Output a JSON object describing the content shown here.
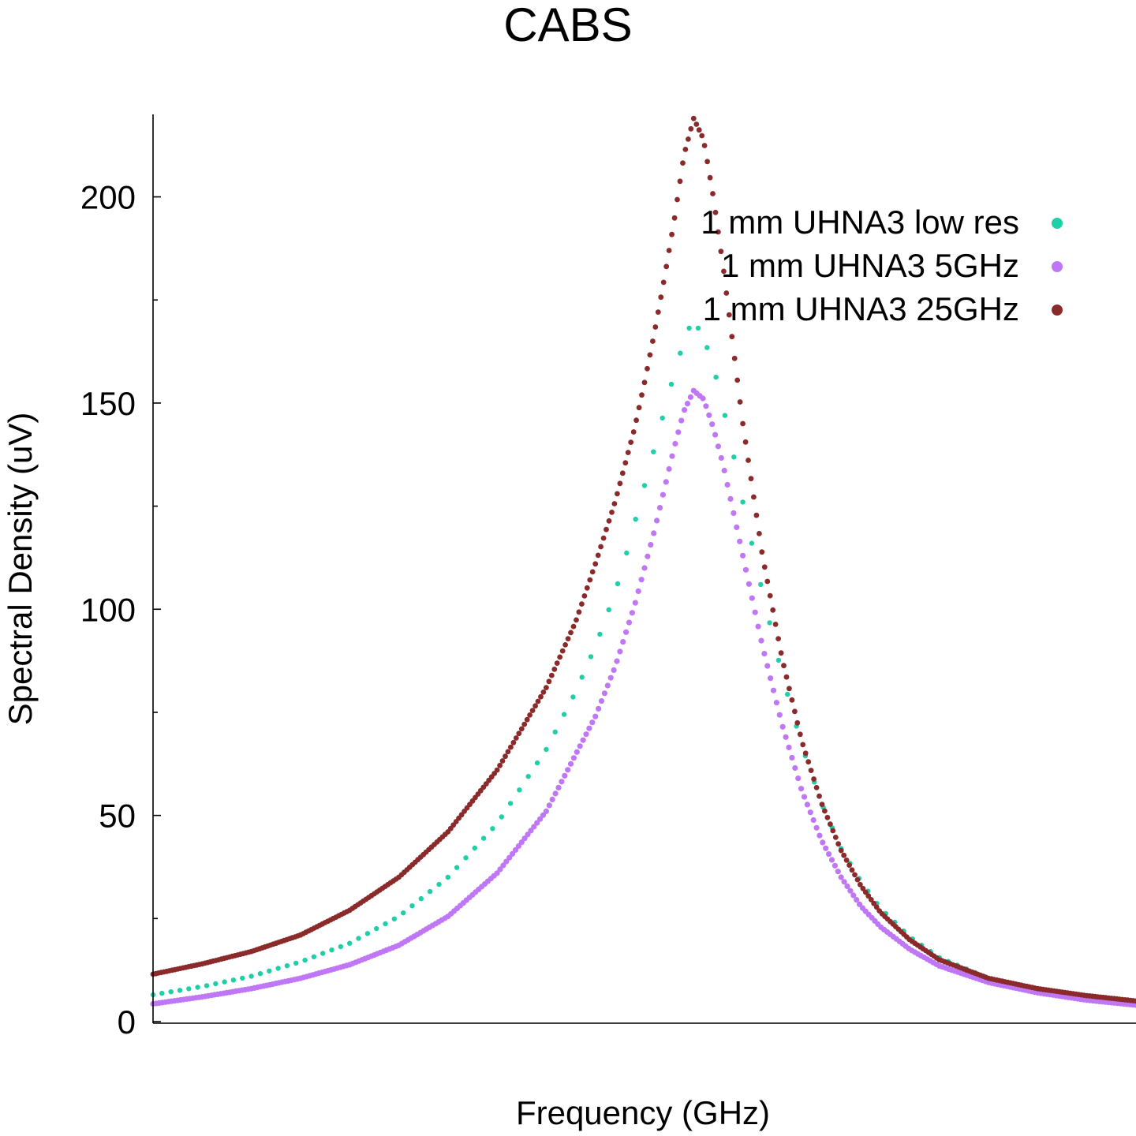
{
  "chart_data": {
    "type": "scatter",
    "title": "CABS",
    "xlabel": "Frequency (GHz)",
    "ylabel": "Spectral Density (uV)",
    "xlim": [
      0,
      1
    ],
    "ylim": [
      0,
      220
    ],
    "y_ticks_major": [
      0,
      50,
      100,
      150,
      200
    ],
    "y_tick_labels": [
      "0",
      "50",
      "100",
      "150",
      "200"
    ],
    "y_ticks_minor": [
      25,
      75,
      125,
      175
    ],
    "x_tick_labels_shown": false,
    "grid": false,
    "legend_position": "top-right",
    "series": [
      {
        "name": "1 mm UHNA3 low res",
        "color": "#1fcfa8",
        "marker": "dot",
        "points": [
          [
            0.0,
            6.5
          ],
          [
            0.05,
            8.5
          ],
          [
            0.1,
            11.0
          ],
          [
            0.15,
            14.5
          ],
          [
            0.2,
            19.0
          ],
          [
            0.25,
            25.5
          ],
          [
            0.3,
            35.0
          ],
          [
            0.35,
            48.0
          ],
          [
            0.4,
            66.0
          ],
          [
            0.43,
            80.0
          ],
          [
            0.45,
            91.0
          ],
          [
            0.47,
            104.0
          ],
          [
            0.48,
            112.0
          ],
          [
            0.49,
            121.0
          ],
          [
            0.5,
            130.0
          ],
          [
            0.51,
            139.0
          ],
          [
            0.52,
            148.0
          ],
          [
            0.53,
            157.0
          ],
          [
            0.54,
            165.0
          ],
          [
            0.545,
            168.0
          ],
          [
            0.55,
            170.0
          ],
          [
            0.56,
            166.0
          ],
          [
            0.57,
            159.0
          ],
          [
            0.58,
            149.0
          ],
          [
            0.59,
            138.0
          ],
          [
            0.6,
            126.0
          ],
          [
            0.62,
            104.0
          ],
          [
            0.64,
            84.0
          ],
          [
            0.66,
            67.0
          ],
          [
            0.68,
            53.0
          ],
          [
            0.7,
            42.0
          ],
          [
            0.72,
            34.0
          ],
          [
            0.74,
            27.5
          ],
          [
            0.77,
            20.5
          ],
          [
            0.8,
            15.5
          ],
          [
            0.85,
            10.5
          ],
          [
            0.9,
            8.0
          ],
          [
            0.95,
            6.0
          ],
          [
            1.0,
            4.8
          ]
        ]
      },
      {
        "name": "1 mm UHNA3 5GHz",
        "color": "#bf77f6",
        "marker": "dot",
        "points": [
          [
            0.0,
            4.3
          ],
          [
            0.05,
            6.0
          ],
          [
            0.1,
            8.0
          ],
          [
            0.15,
            10.5
          ],
          [
            0.2,
            13.8
          ],
          [
            0.25,
            18.5
          ],
          [
            0.3,
            25.5
          ],
          [
            0.35,
            36.0
          ],
          [
            0.4,
            51.0
          ],
          [
            0.45,
            74.0
          ],
          [
            0.47,
            86.0
          ],
          [
            0.49,
            101.0
          ],
          [
            0.5,
            110.0
          ],
          [
            0.51,
            119.0
          ],
          [
            0.52,
            129.0
          ],
          [
            0.53,
            139.0
          ],
          [
            0.54,
            148.0
          ],
          [
            0.55,
            153.0
          ],
          [
            0.56,
            151.0
          ],
          [
            0.57,
            144.0
          ],
          [
            0.58,
            135.0
          ],
          [
            0.59,
            124.0
          ],
          [
            0.6,
            113.0
          ],
          [
            0.62,
            91.0
          ],
          [
            0.64,
            72.0
          ],
          [
            0.66,
            56.0
          ],
          [
            0.68,
            44.0
          ],
          [
            0.7,
            35.0
          ],
          [
            0.72,
            28.0
          ],
          [
            0.74,
            23.0
          ],
          [
            0.77,
            17.5
          ],
          [
            0.8,
            13.5
          ],
          [
            0.85,
            9.5
          ],
          [
            0.9,
            7.0
          ],
          [
            0.95,
            5.2
          ],
          [
            1.0,
            4.0
          ]
        ]
      },
      {
        "name": "1 mm UHNA3 25GHz",
        "color": "#8b2a2a",
        "marker": "dot",
        "points": [
          [
            0.0,
            11.5
          ],
          [
            0.05,
            14.0
          ],
          [
            0.1,
            17.0
          ],
          [
            0.15,
            21.0
          ],
          [
            0.2,
            27.0
          ],
          [
            0.25,
            35.0
          ],
          [
            0.3,
            46.0
          ],
          [
            0.35,
            61.0
          ],
          [
            0.4,
            81.0
          ],
          [
            0.43,
            97.0
          ],
          [
            0.45,
            111.0
          ],
          [
            0.47,
            126.0
          ],
          [
            0.49,
            144.0
          ],
          [
            0.5,
            155.0
          ],
          [
            0.51,
            167.0
          ],
          [
            0.52,
            180.0
          ],
          [
            0.53,
            194.0
          ],
          [
            0.54,
            210.0
          ],
          [
            0.55,
            219.0
          ],
          [
            0.56,
            214.0
          ],
          [
            0.57,
            200.0
          ],
          [
            0.58,
            183.0
          ],
          [
            0.59,
            164.0
          ],
          [
            0.6,
            145.0
          ],
          [
            0.62,
            113.0
          ],
          [
            0.64,
            88.0
          ],
          [
            0.66,
            68.0
          ],
          [
            0.68,
            53.0
          ],
          [
            0.7,
            41.5
          ],
          [
            0.72,
            33.0
          ],
          [
            0.74,
            26.5
          ],
          [
            0.77,
            19.8
          ],
          [
            0.8,
            15.0
          ],
          [
            0.85,
            10.5
          ],
          [
            0.9,
            8.0
          ],
          [
            0.95,
            6.3
          ],
          [
            1.0,
            5.0
          ]
        ]
      }
    ]
  }
}
